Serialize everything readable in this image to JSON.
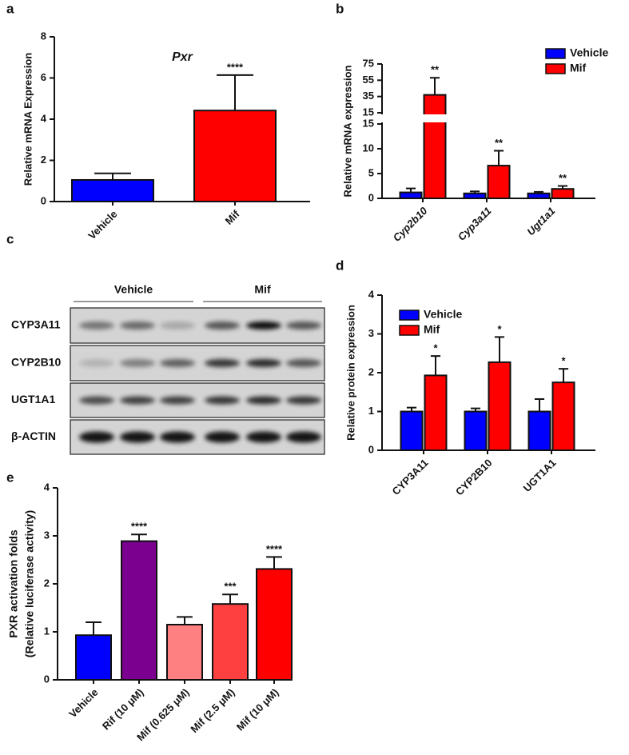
{
  "chart_data": [
    {
      "type": "bar",
      "panel_label": "a",
      "title": "Pxr",
      "ylabel": "Relative mRNA Expression",
      "categories": [
        "Vehicle",
        "Mif"
      ],
      "values": [
        1.05,
        4.42
      ],
      "errors": [
        0.32,
        1.72
      ],
      "colors": [
        "#0000ff",
        "#ff0000"
      ],
      "annotations": [
        {
          "index": 1,
          "text": "****"
        }
      ],
      "ylim": [
        0,
        8
      ],
      "yticks": [
        0,
        2,
        4,
        6,
        8
      ]
    },
    {
      "type": "bar",
      "panel_label": "b",
      "ylabel": "Relative mRNA expression",
      "categories": [
        "Cyp2b10",
        "Cyp3a11",
        "Ugt1a1"
      ],
      "legend": "upper right",
      "series": [
        {
          "name": "Vehicle",
          "color": "#0000ff",
          "values": [
            1.2,
            1.0,
            1.0
          ],
          "errors": [
            0.8,
            0.4,
            0.3
          ]
        },
        {
          "name": "Mif",
          "color": "#ff0000",
          "values": [
            37,
            6.6,
            1.9
          ],
          "errors": [
            21,
            3.0,
            0.6
          ]
        }
      ],
      "annotations": [
        {
          "series": 1,
          "index": 0,
          "text": "**"
        },
        {
          "series": 1,
          "index": 1,
          "text": "**"
        },
        {
          "series": 1,
          "index": 2,
          "text": "**"
        }
      ],
      "segments": [
        {
          "ylim": [
            0,
            15
          ],
          "yticks": [
            0,
            5,
            10,
            15
          ]
        },
        {
          "ylim": [
            15,
            75
          ],
          "yticks": [
            15,
            35,
            55,
            75
          ]
        }
      ]
    },
    {
      "type": "bar",
      "panel_label": "d",
      "ylabel": "Relative protein expression",
      "categories": [
        "CYP3A11",
        "CYP2B10",
        "UGT1A1"
      ],
      "legend": "upper left",
      "series": [
        {
          "name": "Vehicle",
          "color": "#0000ff",
          "values": [
            1.0,
            1.0,
            1.0
          ],
          "errors": [
            0.1,
            0.08,
            0.32
          ]
        },
        {
          "name": "Mif",
          "color": "#ff0000",
          "values": [
            1.93,
            2.27,
            1.75
          ],
          "errors": [
            0.5,
            0.65,
            0.35
          ]
        }
      ],
      "annotations": [
        {
          "series": 1,
          "index": 0,
          "text": "*"
        },
        {
          "series": 1,
          "index": 1,
          "text": "*"
        },
        {
          "series": 1,
          "index": 2,
          "text": "*"
        }
      ],
      "ylim": [
        0,
        4
      ],
      "yticks": [
        0,
        1,
        2,
        3,
        4
      ]
    },
    {
      "type": "bar",
      "panel_label": "e",
      "ylabel": [
        "PXR activation folds",
        "(Relative luciferase activity)"
      ],
      "categories": [
        "Vehicle",
        "Rif (10 μM)",
        "Mif (0.625 μM)",
        "Mif (2.5 μM)",
        "Mif (10 μM)"
      ],
      "values": [
        0.93,
        2.89,
        1.15,
        1.58,
        2.31
      ],
      "errors": [
        0.27,
        0.14,
        0.16,
        0.2,
        0.25
      ],
      "colors": [
        "#0000ff",
        "#7b0090",
        "#ff8080",
        "#ff4040",
        "#ff0000"
      ],
      "annotations": [
        {
          "index": 1,
          "text": "****"
        },
        {
          "index": 3,
          "text": "***"
        },
        {
          "index": 4,
          "text": "****"
        }
      ],
      "ylim": [
        0,
        4
      ],
      "yticks": [
        0,
        1,
        2,
        3,
        4
      ]
    }
  ],
  "blot": {
    "panel_label": "c",
    "groups": [
      "Vehicle",
      "Mif"
    ],
    "rows": [
      "CYP3A11",
      "CYP2B10",
      "UGT1A1",
      "β-ACTIN"
    ]
  }
}
